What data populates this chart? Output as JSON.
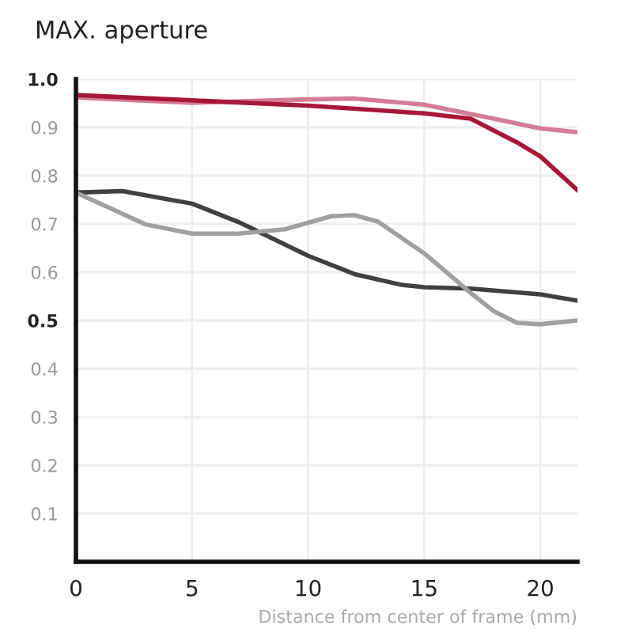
{
  "chart_data": {
    "type": "line",
    "title": "MAX. aperture",
    "xlabel": "Distance from center of frame (mm)",
    "series": [
      {
        "color": "#d47c96",
        "x": [
          0,
          5,
          10,
          12,
          15,
          18,
          20,
          21.6
        ],
        "values": [
          0.962,
          0.951,
          0.958,
          0.96,
          0.947,
          0.918,
          0.898,
          0.89
        ]
      },
      {
        "color": "#a6173a",
        "x": [
          0,
          5,
          10,
          15,
          17,
          19,
          20,
          21.6
        ],
        "values": [
          0.967,
          0.956,
          0.945,
          0.929,
          0.918,
          0.869,
          0.84,
          0.77
        ]
      },
      {
        "color": "#404040",
        "x": [
          0,
          2,
          5,
          7,
          10,
          12,
          14,
          15,
          17,
          20,
          21.6
        ],
        "values": [
          0.765,
          0.768,
          0.742,
          0.704,
          0.634,
          0.596,
          0.574,
          0.569,
          0.566,
          0.554,
          0.541
        ]
      },
      {
        "color": "#a0a0a0",
        "x": [
          0,
          3,
          5,
          7,
          9,
          11,
          12,
          13,
          15,
          17,
          18,
          19,
          20,
          21.6
        ],
        "values": [
          0.765,
          0.699,
          0.68,
          0.68,
          0.689,
          0.716,
          0.718,
          0.705,
          0.639,
          0.557,
          0.519,
          0.495,
          0.492,
          0.5
        ]
      }
    ],
    "xlim": [
      0,
      21.6
    ],
    "ylim": [
      0,
      1.0
    ],
    "xticks": [
      0,
      5,
      10,
      15,
      20
    ],
    "yticks": [
      0.1,
      0.2,
      0.3,
      0.4,
      {
        "value": 0.5,
        "label": "0.5"
      },
      0.6,
      0.7,
      0.8,
      0.9,
      {
        "value": 1.0,
        "label": "1.0"
      }
    ],
    "grid": true,
    "legend": false,
    "marker": "none",
    "line_style": "solid"
  }
}
